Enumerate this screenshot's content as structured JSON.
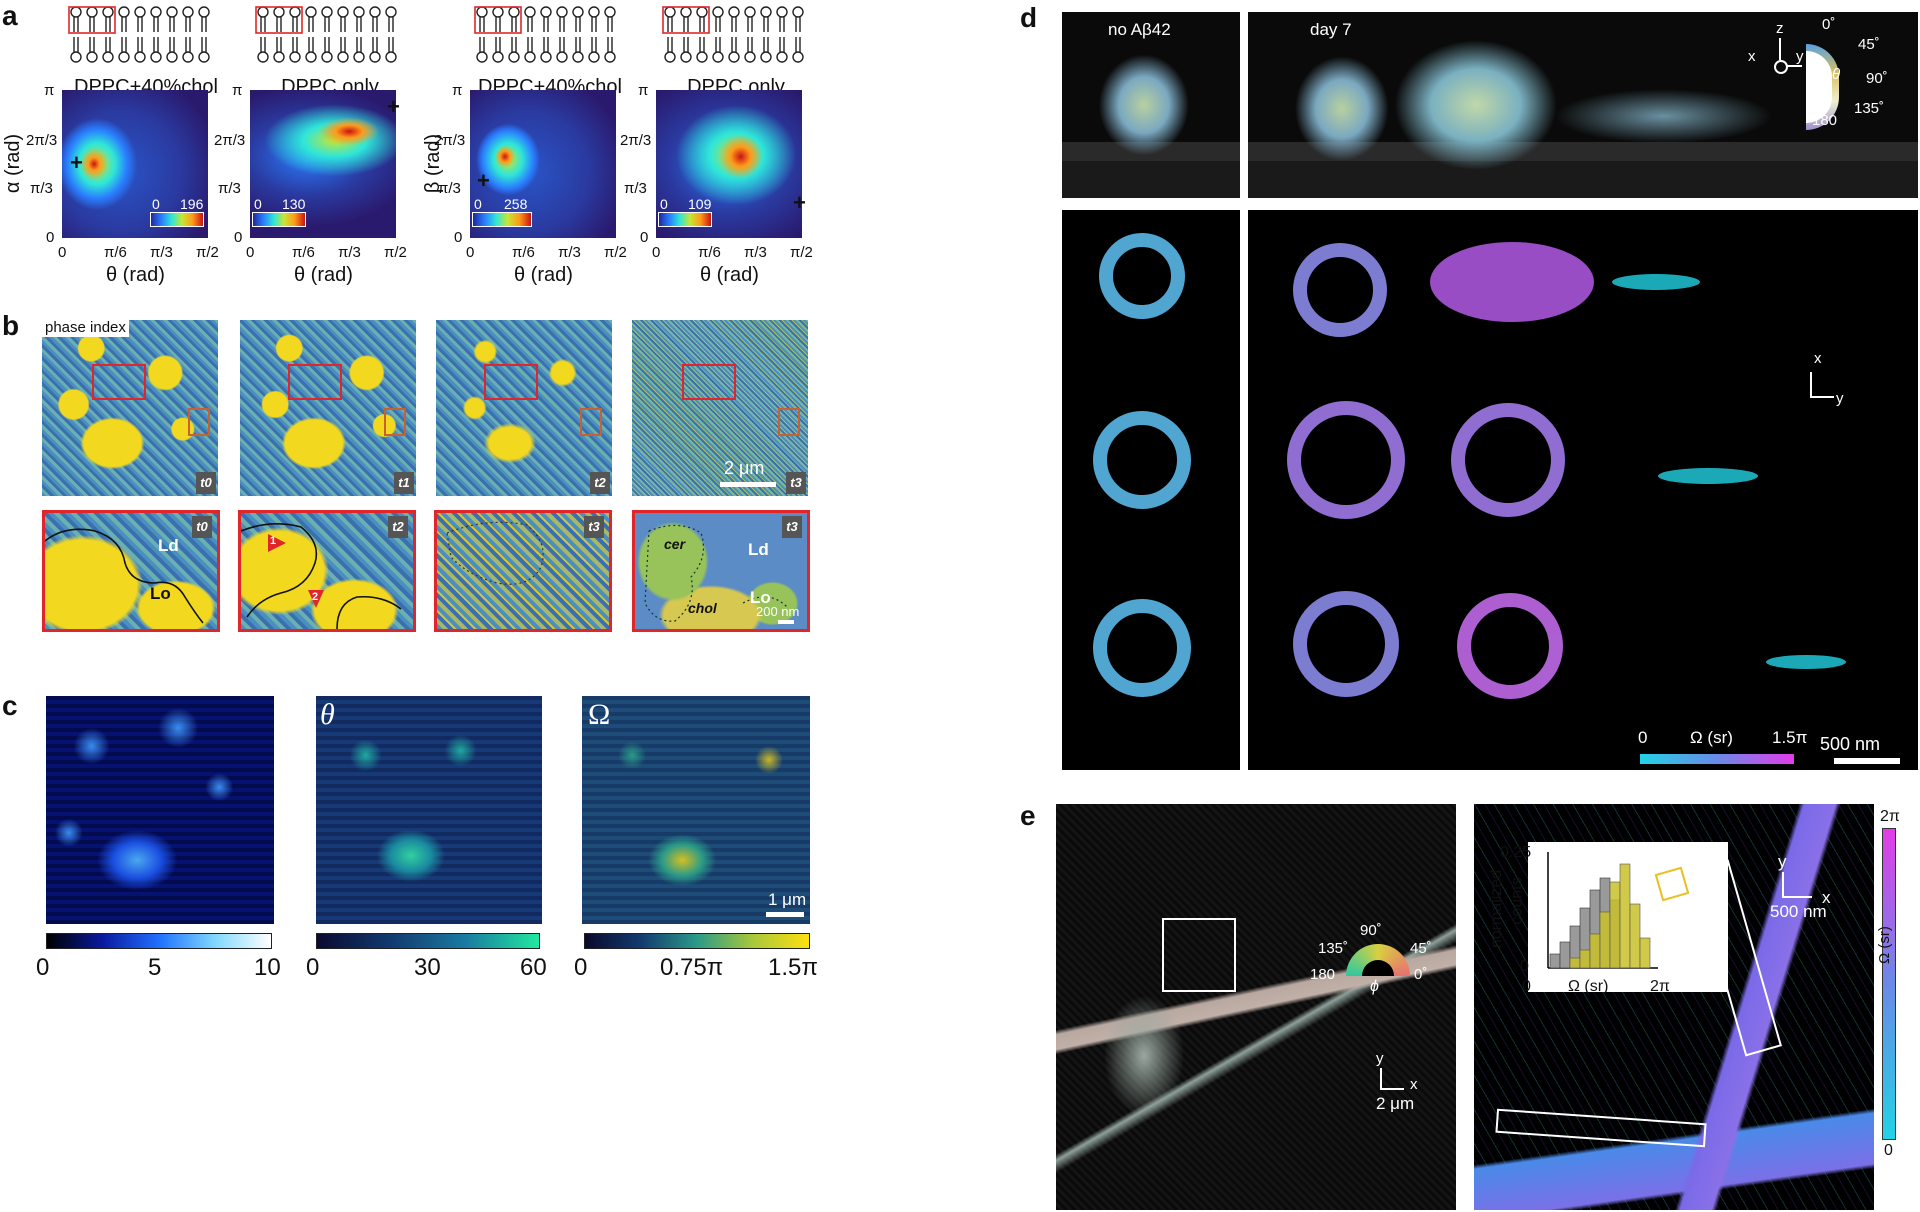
{
  "panel_a": {
    "label": "a",
    "plots": [
      {
        "title": "DPPC+40%chol",
        "ylabel": "α (rad)",
        "xlabel": "θ (rad)",
        "cmin": "0",
        "cmax": "196"
      },
      {
        "title": "DPPC only",
        "ylabel": "",
        "xlabel": "θ (rad)",
        "cmin": "0",
        "cmax": "130"
      },
      {
        "title": "DPPC+40%chol",
        "ylabel": "β (rad)",
        "xlabel": "θ (rad)",
        "cmin": "0",
        "cmax": "258"
      },
      {
        "title": "DPPC only",
        "ylabel": "",
        "xlabel": "θ (rad)",
        "cmin": "0",
        "cmax": "109"
      }
    ],
    "yticks": [
      "π",
      "2π/3",
      "π/3",
      "0"
    ],
    "xticks": [
      "0",
      "π/6",
      "π/3",
      "π/2"
    ]
  },
  "panel_b": {
    "label": "b",
    "corner_label": "phase index",
    "time_badges": [
      "t0",
      "t1",
      "t2",
      "t3"
    ],
    "zoom_badges": [
      "t0",
      "t2",
      "t3",
      "t3"
    ],
    "scalebar_top": "2 μm",
    "scalebar_bottom": "200 nm",
    "region_labels": {
      "ld": "Ld",
      "lo": "Lo",
      "cer": "cer",
      "chol": "chol"
    },
    "arrow_labels": [
      "1",
      "2"
    ]
  },
  "panel_c": {
    "label": "c",
    "maps": [
      {
        "symbol": "",
        "ticks": [
          "0",
          "5",
          "10"
        ]
      },
      {
        "symbol": "θ",
        "ticks": [
          "0",
          "30",
          "60"
        ]
      },
      {
        "symbol": "Ω",
        "ticks": [
          "0",
          "0.75π",
          "1.5π"
        ]
      }
    ],
    "scalebar": "1 μm"
  },
  "panel_d": {
    "label": "d",
    "left_title": "no Aβ42",
    "right_title": "day 7",
    "angle_ticks": [
      "0˚",
      "45˚",
      "90˚",
      "135˚",
      "180"
    ],
    "theta_symbol": "θ",
    "axes_top": {
      "z": "z",
      "x": "x",
      "y": "y"
    },
    "axes_mid": {
      "x": "x",
      "y": "y"
    },
    "colorbar": {
      "min": "0",
      "label": "Ω (sr)",
      "max": "1.5π"
    },
    "scalebar": "500 nm"
  },
  "panel_e": {
    "label": "e",
    "phi_ticks": [
      "135˚",
      "90˚",
      "45˚",
      "180",
      "0˚"
    ],
    "phi_symbol": "ϕ",
    "axes_left": {
      "y": "y",
      "x": "x"
    },
    "scalebar_left": "2 μm",
    "inset": {
      "ylabel_line1": "normalized",
      "ylabel_line2": "counts",
      "ytick": "0.25",
      "ytick0": "0",
      "xlabel": "Ω (sr)",
      "xtick0": "0",
      "xtick1": "2π"
    },
    "axes_right": {
      "y": "y",
      "x": "x"
    },
    "scalebar_right": "500 nm",
    "colorbar": {
      "max": "2π",
      "label": "Ω (sr)",
      "min": "0"
    }
  },
  "colors": {
    "heat_bg": "#2a1a6e",
    "zoom_border": "#e0262a",
    "cyan": "#22d3e6",
    "magenta": "#e23de8"
  }
}
